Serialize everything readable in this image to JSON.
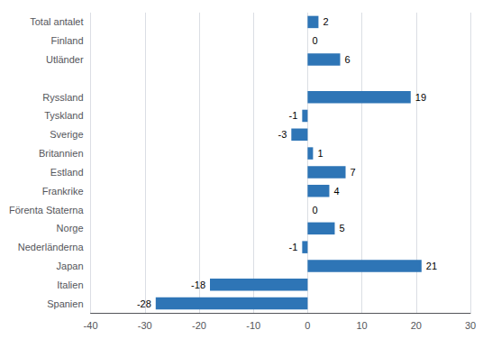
{
  "chart_data": {
    "type": "bar",
    "orientation": "horizontal",
    "categories": [
      "Spanien",
      "Italien",
      "Japan",
      "Nederländerna",
      "Norge",
      "Förenta Staterna",
      "Frankrike",
      "Estland",
      "Britannien",
      "Sverige",
      "Tyskland",
      "Ryssland",
      null,
      "Utländer",
      "Finland",
      "Total antalet"
    ],
    "values": [
      -28,
      -18,
      21,
      -1,
      5,
      0,
      4,
      7,
      1,
      -3,
      -1,
      19,
      null,
      6,
      0,
      2
    ],
    "color": "#2E75B6",
    "xlim": [
      -40,
      30
    ],
    "xticks": [
      -40,
      -30,
      -20,
      -10,
      0,
      10,
      20,
      30
    ],
    "grid": true,
    "data_labels": true
  }
}
